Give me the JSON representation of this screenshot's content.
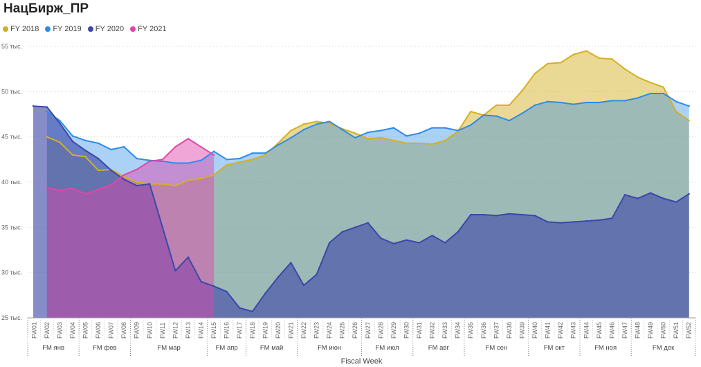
{
  "title": "НацБирж_ПР",
  "chart_data": {
    "type": "area",
    "xlabel": "Fiscal Week",
    "ylabel": "",
    "ylim": [
      25000,
      55000
    ],
    "y_ticks": [
      {
        "value": 25000,
        "label": "25 тыс."
      },
      {
        "value": 30000,
        "label": "30 тыс."
      },
      {
        "value": 35000,
        "label": "35 тыс."
      },
      {
        "value": 40000,
        "label": "40 тыс."
      },
      {
        "value": 45000,
        "label": "45 тыс."
      },
      {
        "value": 50000,
        "label": "50 тыс."
      },
      {
        "value": 55000,
        "label": "55 тыс."
      }
    ],
    "grid": true,
    "legend_position": "top-left",
    "categories": [
      "FW01",
      "FW02",
      "FW03",
      "FW04",
      "FW05",
      "FW06",
      "FW07",
      "FW08",
      "FW09",
      "FW10",
      "FW11",
      "FW12",
      "FW13",
      "FW14",
      "FW15",
      "FW16",
      "FW17",
      "FW18",
      "FW19",
      "FW20",
      "FW21",
      "FW22",
      "FW23",
      "FW24",
      "FW25",
      "FW26",
      "FW27",
      "FW28",
      "FW29",
      "FW30",
      "FW31",
      "FW32",
      "FW33",
      "FW34",
      "FW35",
      "FW36",
      "FW37",
      "FW38",
      "FW39",
      "FW40",
      "FW41",
      "FW42",
      "FW43",
      "FW44",
      "FW45",
      "FW46",
      "FW47",
      "FW48",
      "FW49",
      "FW50",
      "FW51",
      "FW52"
    ],
    "months": [
      {
        "label": "FM янв",
        "start": 0,
        "end": 3
      },
      {
        "label": "FM фев",
        "start": 4,
        "end": 7
      },
      {
        "label": "FM мар",
        "start": 8,
        "end": 13
      },
      {
        "label": "FM апр",
        "start": 14,
        "end": 16
      },
      {
        "label": "FM май",
        "start": 17,
        "end": 20
      },
      {
        "label": "FM июн",
        "start": 21,
        "end": 25
      },
      {
        "label": "FM июл",
        "start": 26,
        "end": 29
      },
      {
        "label": "FM авг",
        "start": 30,
        "end": 33
      },
      {
        "label": "FM сен",
        "start": 34,
        "end": 38
      },
      {
        "label": "FM окт",
        "start": 39,
        "end": 42
      },
      {
        "label": "FM ноя",
        "start": 43,
        "end": 46
      },
      {
        "label": "FM дек",
        "start": 47,
        "end": 51
      }
    ],
    "series": [
      {
        "name": "FY 2018",
        "color": "#D4B020",
        "values": [
          null,
          45000,
          44400,
          43000,
          42800,
          41300,
          41400,
          40600,
          40000,
          39800,
          39800,
          39600,
          40200,
          40400,
          40800,
          41900,
          42200,
          42500,
          43000,
          44300,
          45700,
          46400,
          46700,
          46500,
          45900,
          45400,
          44800,
          44900,
          44600,
          44300,
          44300,
          44200,
          44600,
          45600,
          47800,
          47400,
          48500,
          48500,
          50100,
          52000,
          53100,
          53200,
          54100,
          54500,
          53700,
          53600,
          52500,
          51600,
          51000,
          50500,
          47800,
          46800
        ]
      },
      {
        "name": "FY 2019",
        "color": "#2D8BEA",
        "values": [
          null,
          47800,
          46800,
          45100,
          44600,
          44300,
          43600,
          43900,
          42600,
          42400,
          42300,
          42100,
          42100,
          42400,
          43400,
          42500,
          42600,
          43200,
          43200,
          44100,
          44900,
          45800,
          46400,
          46700,
          45800,
          44900,
          45500,
          45700,
          46000,
          45100,
          45400,
          46000,
          46000,
          45700,
          46300,
          47400,
          47300,
          46800,
          47600,
          48500,
          48900,
          48800,
          48600,
          48800,
          48800,
          49000,
          49000,
          49300,
          49800,
          49800,
          48900,
          48400
        ]
      },
      {
        "name": "FY 2020",
        "color": "#3D47A8",
        "values": [
          48400,
          48300,
          46500,
          44500,
          43500,
          42600,
          41300,
          40300,
          39600,
          39800,
          35000,
          30200,
          31700,
          29000,
          28500,
          27900,
          26100,
          25700,
          27700,
          29500,
          31100,
          28600,
          29800,
          33300,
          34500,
          35000,
          35500,
          33800,
          33200,
          33600,
          33300,
          34100,
          33300,
          34500,
          36400,
          36400,
          36300,
          36500,
          36400,
          36300,
          35600,
          35500,
          35600,
          35700,
          35800,
          36000,
          38600,
          38200,
          38800,
          38200,
          37800,
          38700
        ]
      },
      {
        "name": "FY 2021",
        "color": "#E046AA",
        "values": [
          null,
          39400,
          39100,
          39300,
          38700,
          39200,
          39700,
          40800,
          41400,
          42300,
          42500,
          43900,
          44800,
          43900,
          43000,
          null,
          null,
          null,
          null,
          null,
          null,
          null,
          null,
          null,
          null,
          null,
          null,
          null,
          null,
          null,
          null,
          null,
          null,
          null,
          null,
          null,
          null,
          null,
          null,
          null,
          null,
          null,
          null,
          null,
          null,
          null,
          null,
          null,
          null,
          null,
          null,
          null
        ]
      }
    ]
  }
}
